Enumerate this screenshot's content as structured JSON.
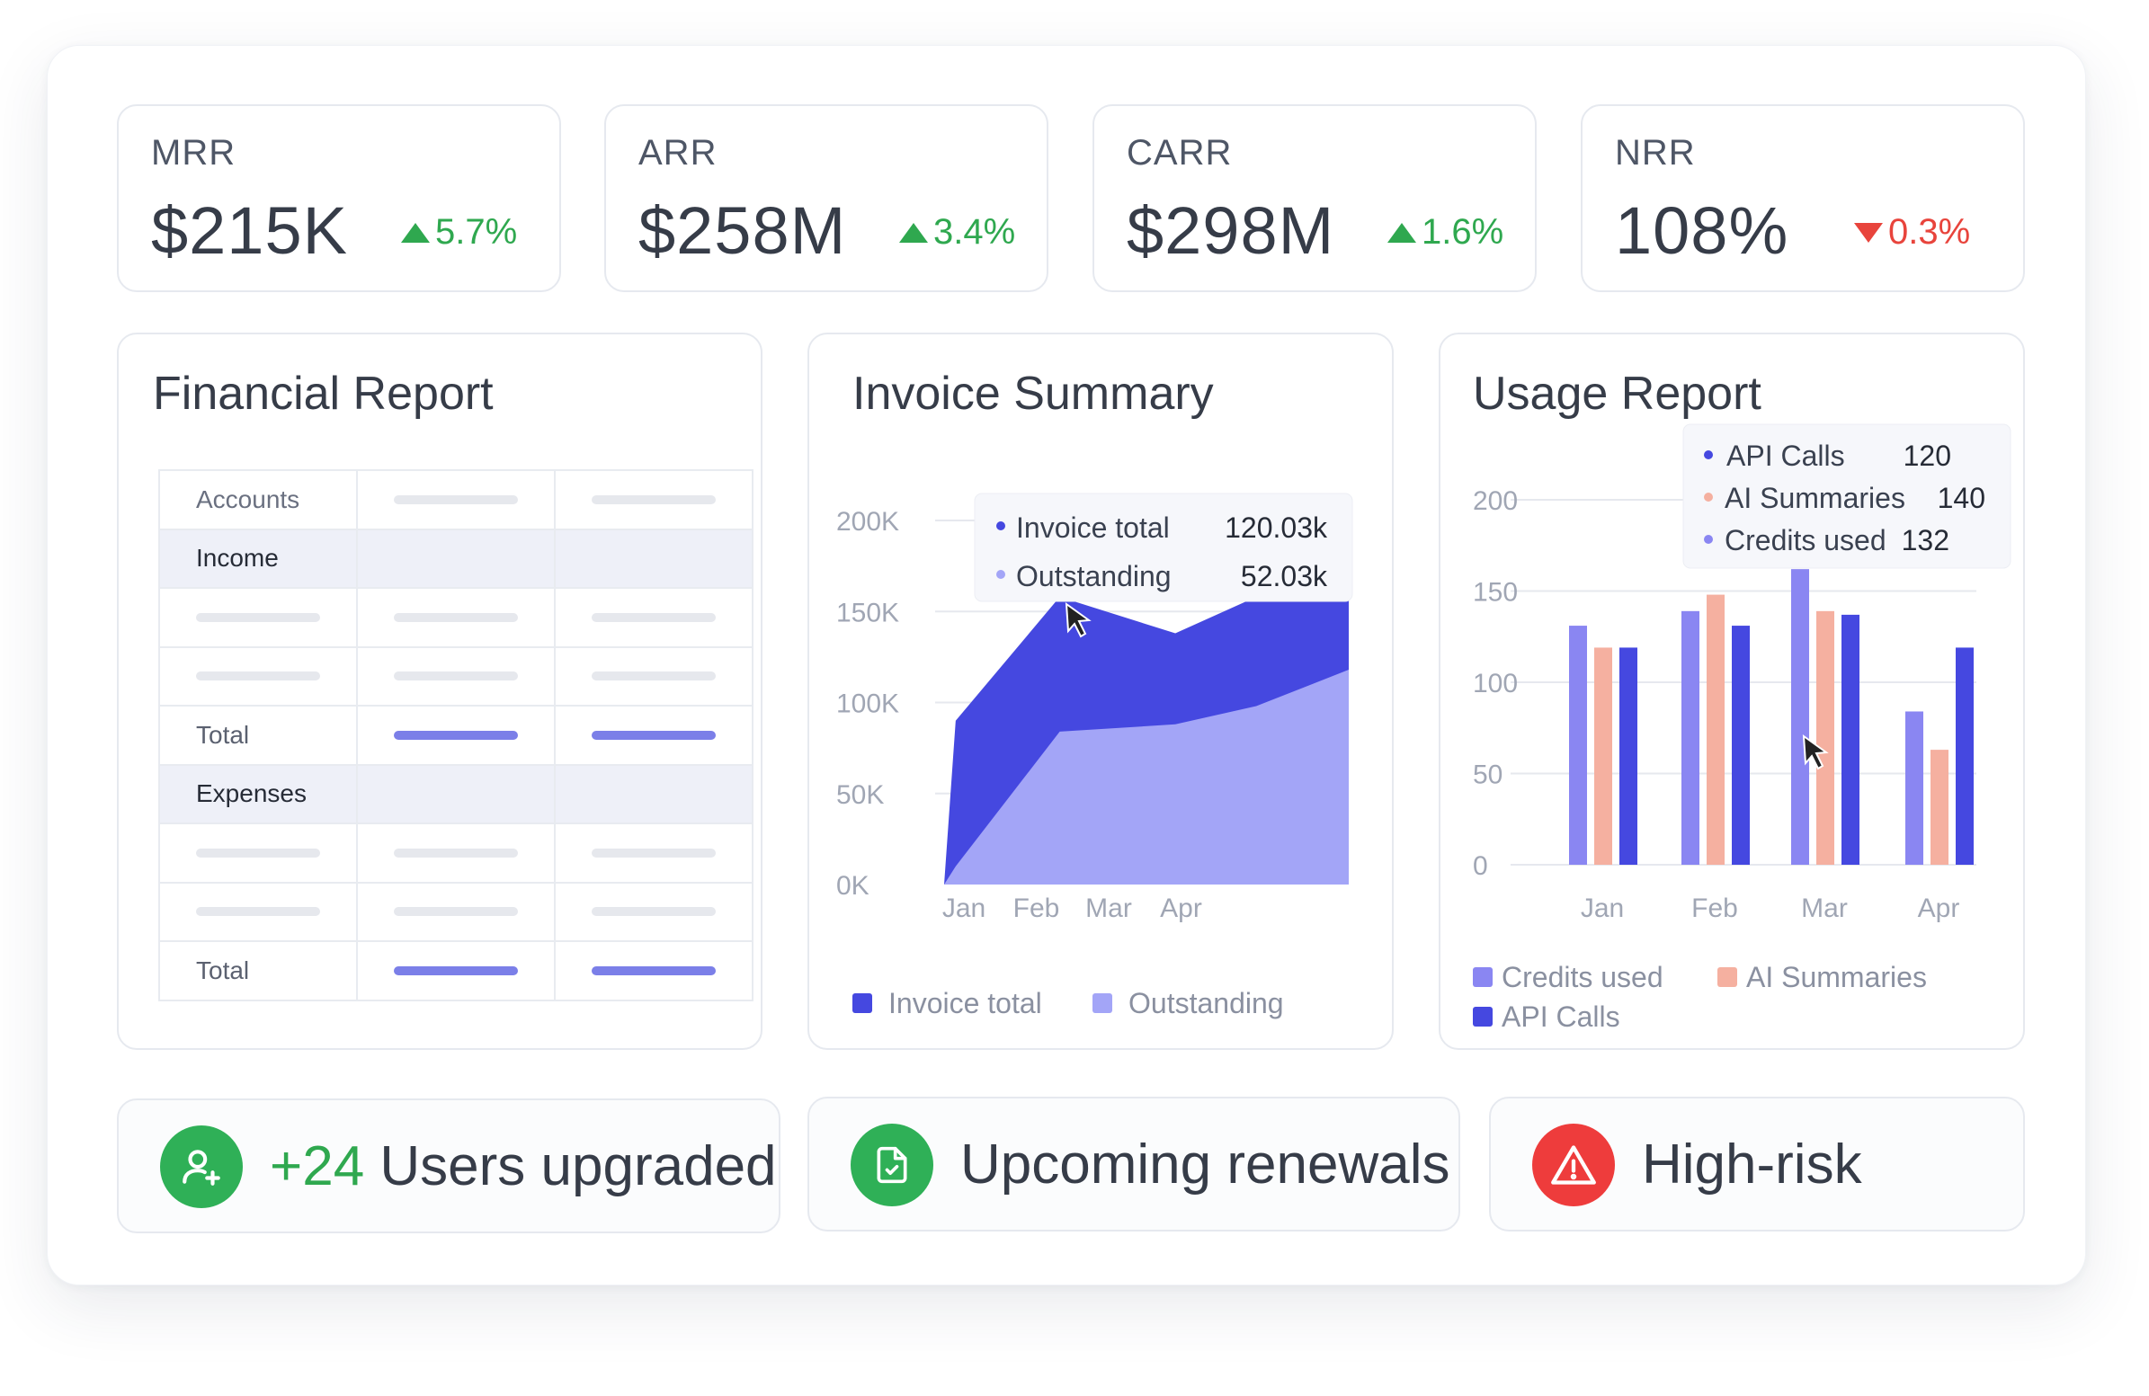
{
  "kpis": [
    {
      "label": "MRR",
      "value": "$215K",
      "delta": "5.7%",
      "direction": "up"
    },
    {
      "label": "ARR",
      "value": "$258M",
      "delta": "3.4%",
      "direction": "up"
    },
    {
      "label": "CARR",
      "value": "$298M",
      "delta": "1.6%",
      "direction": "up"
    },
    {
      "label": "NRR",
      "value": "108%",
      "delta": "0.3%",
      "direction": "down"
    }
  ],
  "financial_report": {
    "title": "Financial Report",
    "rows": {
      "accounts": "Accounts",
      "income": "Income",
      "total1": "Total",
      "expenses": "Expenses",
      "total2": "Total"
    }
  },
  "invoice_summary": {
    "title": "Invoice Summary",
    "tooltip": {
      "invoice_label": "Invoice total",
      "invoice_value": "120.03k",
      "outstanding_label": "Outstanding",
      "outstanding_value": "52.03k"
    },
    "legend": {
      "invoice": "Invoice total",
      "outstanding": "Outstanding"
    }
  },
  "usage_report": {
    "title": "Usage Report",
    "tooltip": {
      "api_label": "API Calls",
      "api_value": "120",
      "ai_label": "AI Summaries",
      "ai_value": "140",
      "credits_label": "Credits used",
      "credits_value": "132"
    },
    "legend": {
      "credits": "Credits used",
      "ai": "AI Summaries",
      "api": "API Calls"
    }
  },
  "bottom": {
    "users_count": "+24",
    "users_label": " Users upgraded",
    "renewals": "Upcoming renewals",
    "risk": "High-risk"
  },
  "colors": {
    "invoice_total": "#4548e0",
    "outstanding": "#a3a5f7",
    "credits_used": "#8a86f2",
    "ai_summaries": "#f5b0a0",
    "api_calls": "#4548e0",
    "positive": "#2fa84f",
    "negative": "#e8443c"
  },
  "chart_data": [
    {
      "type": "area",
      "title": "Invoice Summary",
      "categories": [
        "Jan",
        "Feb",
        "Mar",
        "Apr"
      ],
      "ylim": [
        0,
        200000
      ],
      "yticks": [
        "0K",
        "50K",
        "100K",
        "150K",
        "200K"
      ],
      "series": [
        {
          "name": "Invoice total",
          "x": [
            0,
            0.1,
            1.0,
            2.0,
            2.7,
            3.5
          ],
          "values": [
            0,
            90000,
            158000,
            138000,
            158000,
            158000
          ]
        },
        {
          "name": "Outstanding",
          "x": [
            0,
            0.1,
            1.0,
            2.0,
            2.7,
            3.5
          ],
          "values": [
            0,
            10000,
            84000,
            88000,
            98000,
            118000
          ]
        }
      ],
      "legend": "bottom"
    },
    {
      "type": "bar",
      "title": "Usage Report",
      "categories": [
        "Jan",
        "Feb",
        "Mar",
        "Apr"
      ],
      "ylim": [
        0,
        200
      ],
      "yticks": [
        "0",
        "50",
        "100",
        "150",
        "200"
      ],
      "series": [
        {
          "name": "Credits used",
          "values": [
            131,
            139,
            162,
            84
          ]
        },
        {
          "name": "AI Summaries",
          "values": [
            119,
            148,
            139,
            63
          ]
        },
        {
          "name": "API Calls",
          "values": [
            119,
            131,
            137,
            119
          ]
        }
      ],
      "legend": "bottom"
    }
  ]
}
